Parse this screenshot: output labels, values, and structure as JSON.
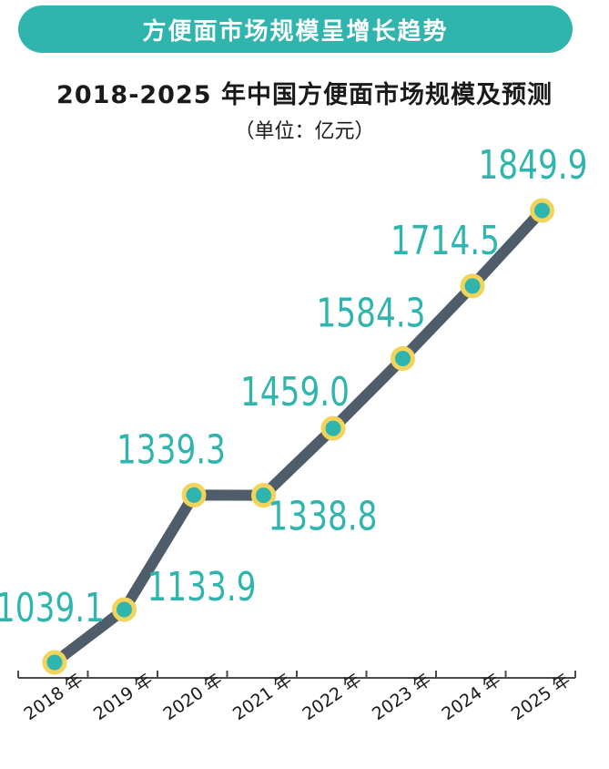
{
  "banner": {
    "text": "方便面市场规模呈增长趋势"
  },
  "title": "2018-2025 年中国方便面市场规模及预测",
  "unit": "（单位：亿元）",
  "colors": {
    "banner": "#2fb5ad",
    "line": "#4f5d6b",
    "marker_fill": "#2fb5ad",
    "marker_ring": "#f2d45c",
    "label": "#2fb5ad",
    "axis": "#4a4a4a"
  },
  "chart_data": {
    "type": "line",
    "title": "2018-2025 年中国方便面市场规模及预测",
    "ylabel": "（单位：亿元）",
    "categories": [
      "2018 年",
      "2019 年",
      "2020 年",
      "2021 年",
      "2022 年",
      "2023 年",
      "2024 年",
      "2025 年"
    ],
    "series": [
      {
        "values": [
          1039.1,
          1133.9,
          1339.3,
          1338.8,
          1459.0,
          1584.3,
          1714.5,
          1849.9
        ]
      }
    ],
    "data_labels": [
      "1039.1",
      "1133.9",
      "1339.3",
      "1338.8",
      "1459.0",
      "1584.3",
      "1714.5",
      "1849.9"
    ],
    "grid": false,
    "legend": "none"
  }
}
